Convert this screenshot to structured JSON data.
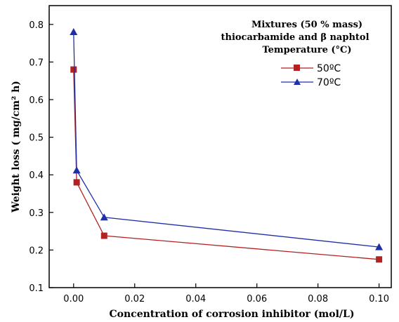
{
  "chart_data": {
    "type": "line",
    "title": "",
    "xlabel": "Concentration of corrosion inhibitor (mol/L)",
    "ylabel": "Weight loss ( mg/cm² h)",
    "xlim": [
      -0.008,
      0.104
    ],
    "ylim": [
      0.1,
      0.85
    ],
    "x_ticks": [
      0.0,
      0.02,
      0.04,
      0.06,
      0.08,
      0.1
    ],
    "x_tick_labels": [
      "0.00",
      "0.02",
      "0.04",
      "0.06",
      "0.08",
      "0.10"
    ],
    "y_ticks": [
      0.1,
      0.2,
      0.3,
      0.4,
      0.5,
      0.6,
      0.7,
      0.8
    ],
    "y_tick_labels": [
      "0.1",
      "0.2",
      "0.3",
      "0.4",
      "0.5",
      "0.6",
      "0.7",
      "0.8"
    ],
    "grid": false,
    "legend": {
      "title_lines": [
        "Mixtures (50 % mass)",
        "thiocarbamide and  β naphtol",
        "Temperature (°C)"
      ],
      "placement": "top-right"
    },
    "series": [
      {
        "name": "50ºC",
        "color": "#b22222",
        "marker": "square",
        "points": [
          {
            "x": 0.0,
            "y": 0.68
          },
          {
            "x": 0.001,
            "y": 0.38
          },
          {
            "x": 0.01,
            "y": 0.238
          },
          {
            "x": 0.1,
            "y": 0.175
          }
        ]
      },
      {
        "name": "70ºC",
        "color": "#1f2fa8",
        "marker": "triangle",
        "points": [
          {
            "x": 0.0,
            "y": 0.78
          },
          {
            "x": 0.001,
            "y": 0.412
          },
          {
            "x": 0.01,
            "y": 0.287
          },
          {
            "x": 0.1,
            "y": 0.208
          }
        ]
      }
    ]
  }
}
